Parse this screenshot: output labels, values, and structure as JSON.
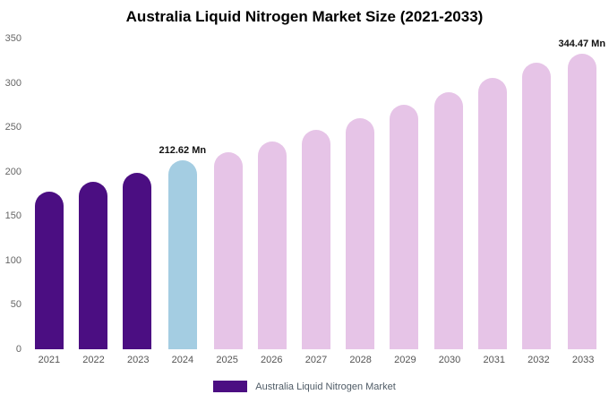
{
  "title": "Australia Liquid Nitrogen Market Size (2021-2033)",
  "legend": {
    "label": "Australia Liquid Nitrogen Market",
    "swatch_color": "#4b0e82"
  },
  "chart_data": {
    "type": "bar",
    "title": "Australia Liquid Nitrogen Market Size (2021-2033)",
    "categories": [
      "2021",
      "2022",
      "2023",
      "2024",
      "2025",
      "2026",
      "2027",
      "2028",
      "2029",
      "2030",
      "2031",
      "2032",
      "2033"
    ],
    "values": [
      178,
      189,
      199,
      212.62,
      222,
      234,
      247,
      260,
      275,
      290,
      306,
      323,
      344.47
    ],
    "bar_roles": [
      "historical",
      "historical",
      "historical",
      "current",
      "forecast",
      "forecast",
      "forecast",
      "forecast",
      "forecast",
      "forecast",
      "forecast",
      "forecast",
      "forecast"
    ],
    "colors": {
      "historical": "#4b0e82",
      "current": "#a4cde2",
      "forecast": "#e6c4e7"
    },
    "data_labels": {
      "2024": "212.62 Mn",
      "2033": "344.47 Mn"
    },
    "xlabel": "",
    "ylabel": "",
    "ylim": [
      0,
      350
    ],
    "yticks": [
      0,
      50,
      100,
      150,
      200,
      250,
      300,
      350
    ],
    "grid": false,
    "legend_entries": [
      "Australia Liquid Nitrogen Market"
    ],
    "legend_position": "bottom"
  }
}
